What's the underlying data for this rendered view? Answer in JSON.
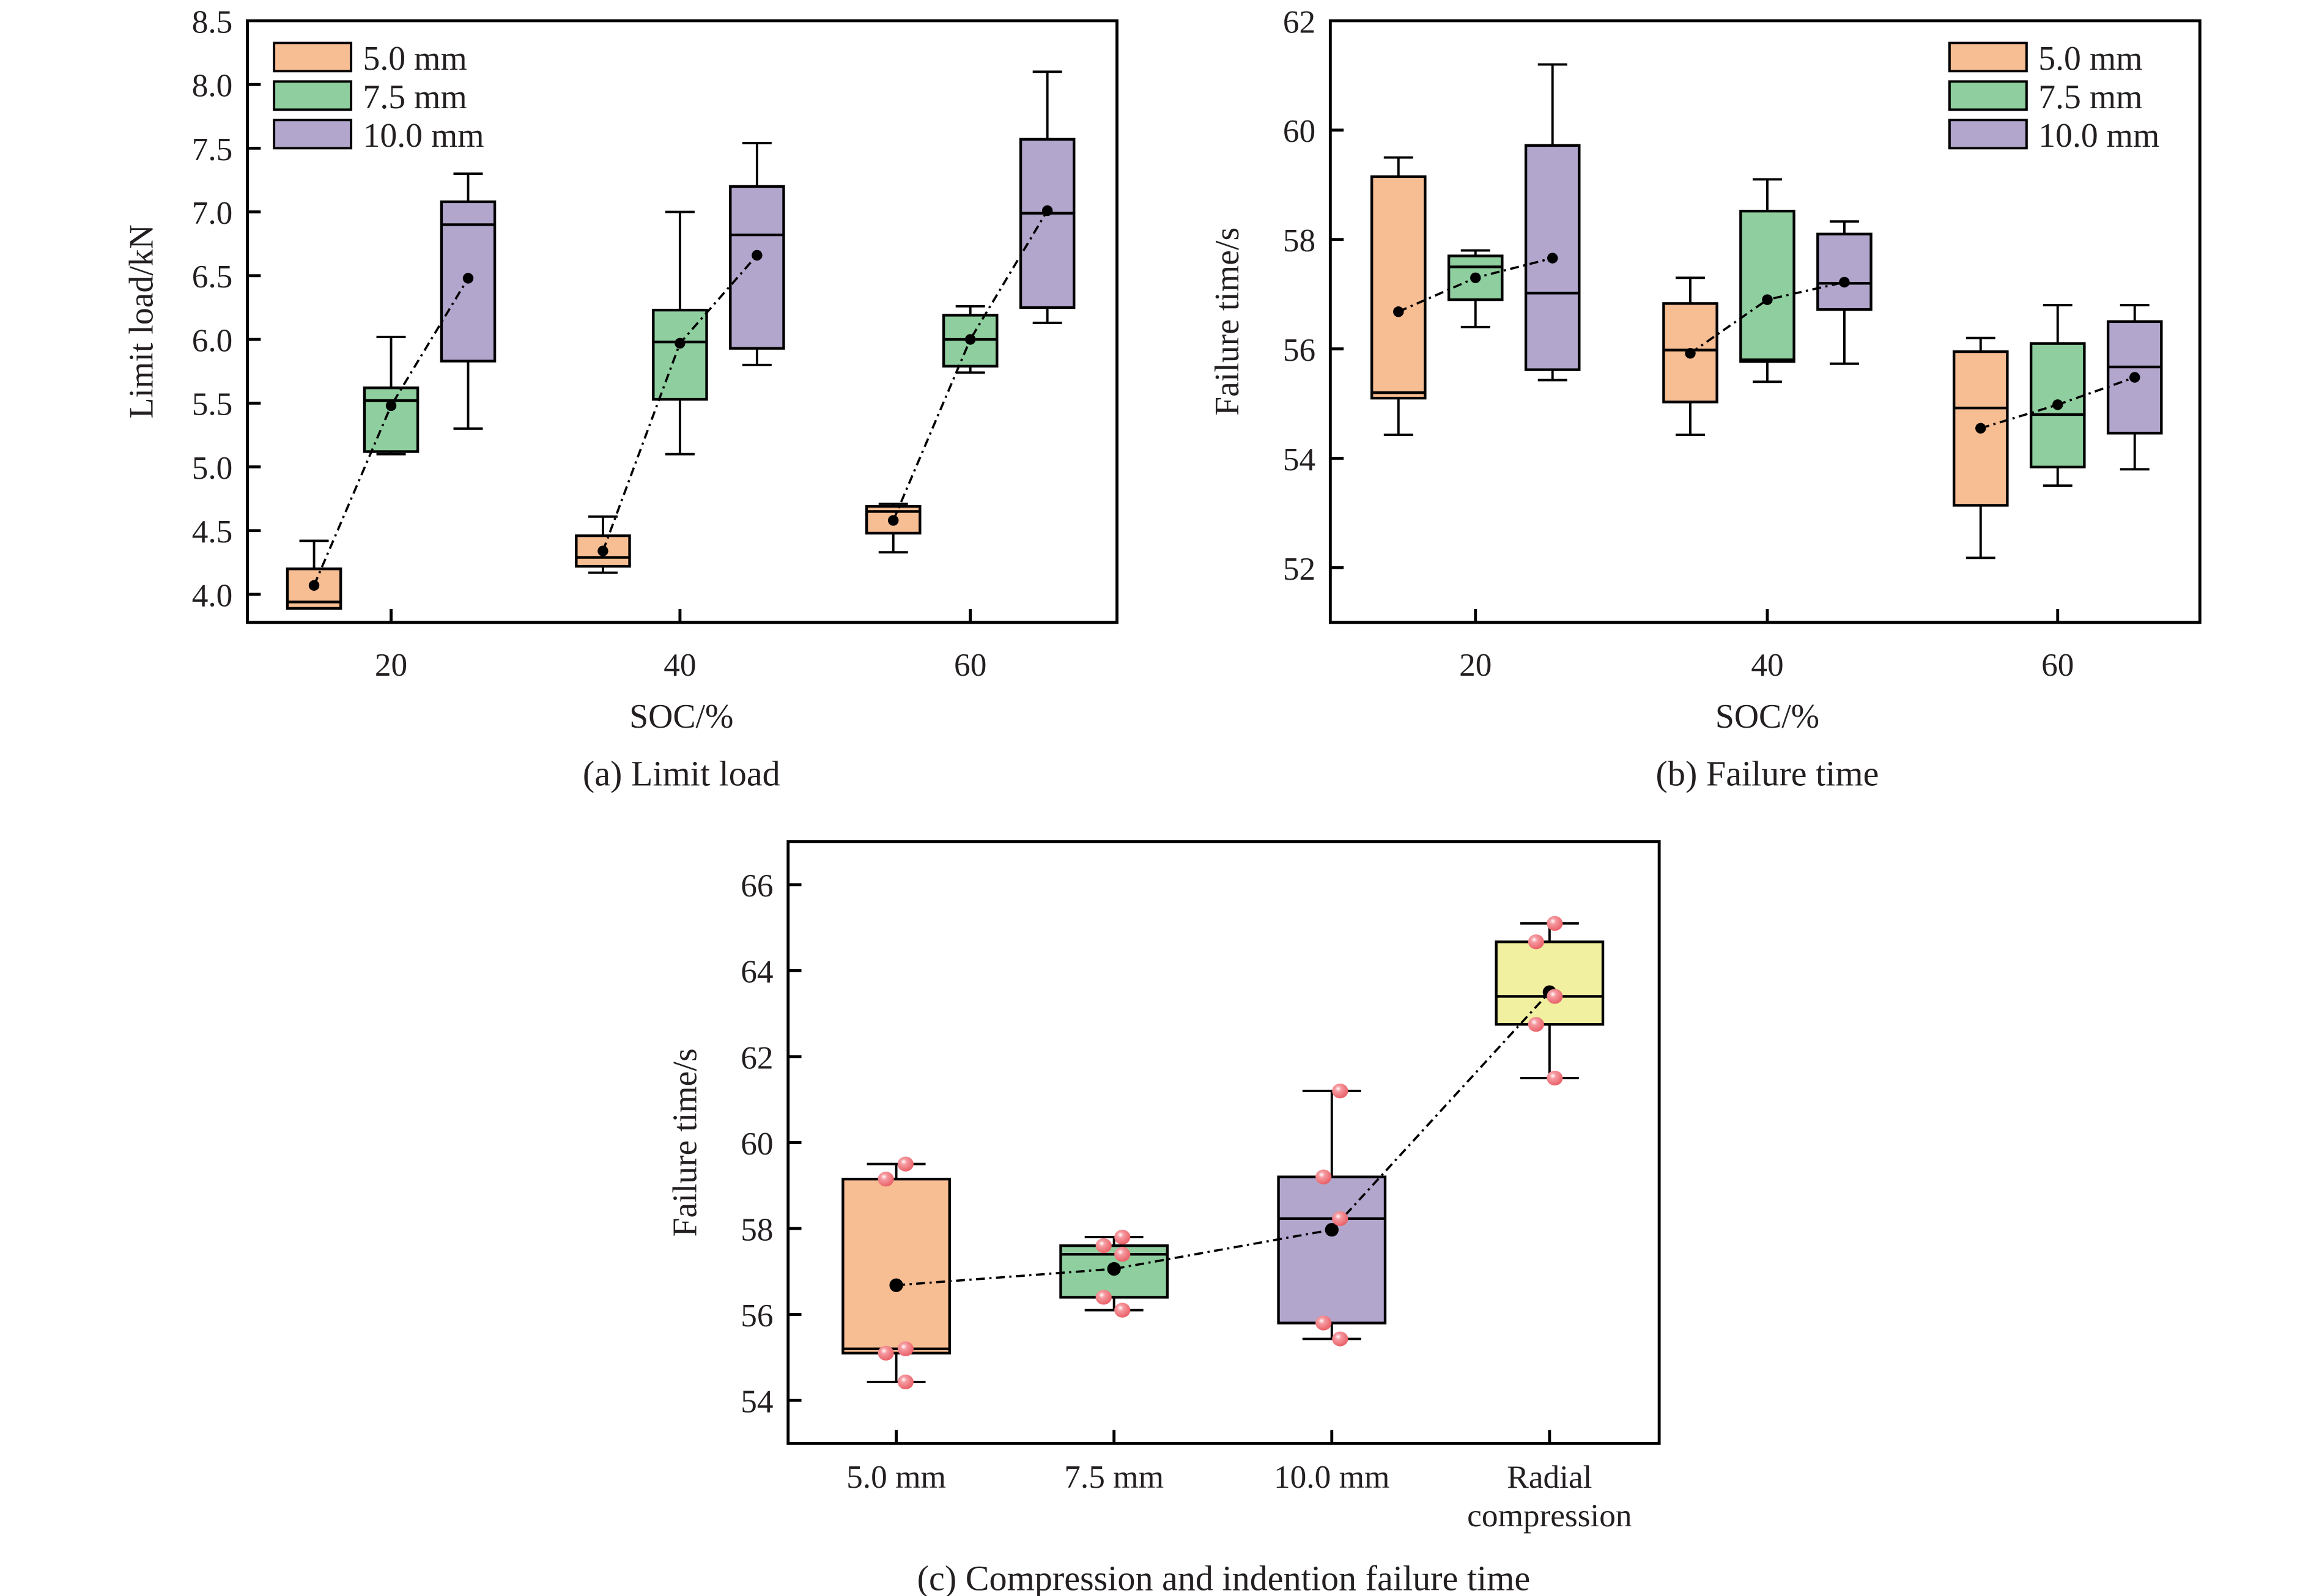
{
  "colors": {
    "5.0 mm": "#f7bd93",
    "7.5 mm": "#8fcf9f",
    "10.0 mm": "#b2a6cc",
    "Radial compression": "#f0f0a0",
    "points": "#ef6f74",
    "mean": "#000000"
  },
  "chart_data": [
    {
      "type": "box",
      "panel": "a",
      "caption": "(a) Limit load",
      "title": "",
      "xlabel": "SOC/%",
      "ylabel": "Limit load/kN",
      "ylim": [
        3.78,
        8.5
      ],
      "yticks": [
        4.0,
        4.5,
        5.0,
        5.5,
        6.0,
        6.5,
        7.0,
        7.5,
        8.0,
        8.5
      ],
      "ytick_labels": [
        "4.0",
        "4.5",
        "5.0",
        "5.5",
        "6.0",
        "6.5",
        "7.0",
        "7.5",
        "8.0",
        "8.5"
      ],
      "categories": [
        "20",
        "40",
        "60"
      ],
      "legend": {
        "position": "top-left",
        "entries": [
          "5.0 mm",
          "7.5 mm",
          "10.0 mm"
        ]
      },
      "series": [
        {
          "name": "5.0 mm",
          "boxes": [
            {
              "min": 3.89,
              "q1": 3.89,
              "median": 3.94,
              "q3": 4.2,
              "max": 4.42,
              "mean": 4.07
            },
            {
              "min": 4.17,
              "q1": 4.22,
              "median": 4.29,
              "q3": 4.46,
              "max": 4.61,
              "mean": 4.34
            },
            {
              "min": 4.33,
              "q1": 4.48,
              "median": 4.65,
              "q3": 4.69,
              "max": 4.71,
              "mean": 4.58
            }
          ]
        },
        {
          "name": "7.5 mm",
          "boxes": [
            {
              "min": 5.1,
              "q1": 5.12,
              "median": 5.52,
              "q3": 5.62,
              "max": 6.02,
              "mean": 5.48
            },
            {
              "min": 5.1,
              "q1": 5.53,
              "median": 5.98,
              "q3": 6.23,
              "max": 7.0,
              "mean": 5.97
            },
            {
              "min": 5.74,
              "q1": 5.79,
              "median": 6.0,
              "q3": 6.19,
              "max": 6.26,
              "mean": 6.0
            }
          ]
        },
        {
          "name": "10.0 mm",
          "boxes": [
            {
              "min": 5.3,
              "q1": 5.83,
              "median": 6.9,
              "q3": 7.08,
              "max": 7.3,
              "mean": 6.48
            },
            {
              "min": 5.8,
              "q1": 5.93,
              "median": 6.82,
              "q3": 7.2,
              "max": 7.54,
              "mean": 6.66
            },
            {
              "min": 6.13,
              "q1": 6.25,
              "median": 6.99,
              "q3": 7.57,
              "max": 8.1,
              "mean": 7.01
            }
          ]
        }
      ]
    },
    {
      "type": "box",
      "panel": "b",
      "caption": "(b) Failure time",
      "title": "",
      "xlabel": "SOC/%",
      "ylabel": "Failure time/s",
      "ylim": [
        51,
        62
      ],
      "yticks": [
        52,
        54,
        56,
        58,
        60,
        62
      ],
      "ytick_labels": [
        "52",
        "54",
        "56",
        "58",
        "60",
        "62"
      ],
      "categories": [
        "20",
        "40",
        "60"
      ],
      "legend": {
        "position": "top-right",
        "entries": [
          "5.0 mm",
          "7.5 mm",
          "10.0 mm"
        ]
      },
      "series": [
        {
          "name": "5.0 mm",
          "boxes": [
            {
              "min": 54.43,
              "q1": 55.1,
              "median": 55.2,
              "q3": 59.15,
              "max": 59.5,
              "mean": 56.68
            },
            {
              "min": 54.43,
              "q1": 55.03,
              "median": 55.98,
              "q3": 56.83,
              "max": 57.3,
              "mean": 55.92
            },
            {
              "min": 52.18,
              "q1": 53.14,
              "median": 54.92,
              "q3": 55.95,
              "max": 56.2,
              "mean": 54.55
            }
          ]
        },
        {
          "name": "7.5 mm",
          "boxes": [
            {
              "min": 56.4,
              "q1": 56.9,
              "median": 57.5,
              "q3": 57.7,
              "max": 57.8,
              "mean": 57.3
            },
            {
              "min": 55.4,
              "q1": 55.77,
              "median": 55.8,
              "q3": 58.52,
              "max": 59.1,
              "mean": 56.9
            },
            {
              "min": 53.5,
              "q1": 53.84,
              "median": 54.8,
              "q3": 56.1,
              "max": 56.8,
              "mean": 54.98
            }
          ]
        },
        {
          "name": "10.0 mm",
          "boxes": [
            {
              "min": 55.43,
              "q1": 55.62,
              "median": 57.02,
              "q3": 59.72,
              "max": 61.2,
              "mean": 57.66
            },
            {
              "min": 55.73,
              "q1": 56.72,
              "median": 57.2,
              "q3": 58.1,
              "max": 58.33,
              "mean": 57.22
            },
            {
              "min": 53.8,
              "q1": 54.46,
              "median": 55.67,
              "q3": 56.5,
              "max": 56.8,
              "mean": 55.48
            }
          ]
        }
      ]
    },
    {
      "type": "box",
      "panel": "c",
      "caption": "(c) Compression and indention failure time",
      "title": "",
      "xlabel": "",
      "ylabel": "Failure time/s",
      "ylim": [
        53,
        67
      ],
      "yticks": [
        54,
        56,
        58,
        60,
        62,
        64,
        66
      ],
      "ytick_labels": [
        "54",
        "56",
        "58",
        "60",
        "62",
        "64",
        "66"
      ],
      "categories": [
        "5.0 mm",
        "7.5 mm",
        "10.0 mm",
        "Radial compression"
      ],
      "category_label_lines": [
        [
          "5.0 mm"
        ],
        [
          "7.5 mm"
        ],
        [
          "10.0 mm"
        ],
        [
          "Radial",
          "compression"
        ]
      ],
      "boxes": [
        {
          "name": "5.0 mm",
          "min": 54.43,
          "q1": 55.1,
          "median": 55.2,
          "q3": 59.15,
          "max": 59.5,
          "mean": 56.68,
          "points": [
            59.5,
            59.15,
            55.2,
            55.1,
            54.43
          ]
        },
        {
          "name": "7.5 mm",
          "min": 56.1,
          "q1": 56.4,
          "median": 57.4,
          "q3": 57.6,
          "max": 57.8,
          "mean": 57.06,
          "points": [
            57.8,
            57.6,
            57.4,
            56.4,
            56.1
          ]
        },
        {
          "name": "10.0 mm",
          "min": 55.43,
          "q1": 55.8,
          "median": 58.23,
          "q3": 59.2,
          "max": 61.2,
          "mean": 57.97,
          "points": [
            61.2,
            59.2,
            58.23,
            55.8,
            55.43
          ]
        },
        {
          "name": "Radial compression",
          "min": 61.5,
          "q1": 62.75,
          "median": 63.4,
          "q3": 64.67,
          "max": 65.1,
          "mean": 63.5,
          "points": [
            65.1,
            64.67,
            63.4,
            62.75,
            61.5
          ]
        }
      ]
    }
  ]
}
